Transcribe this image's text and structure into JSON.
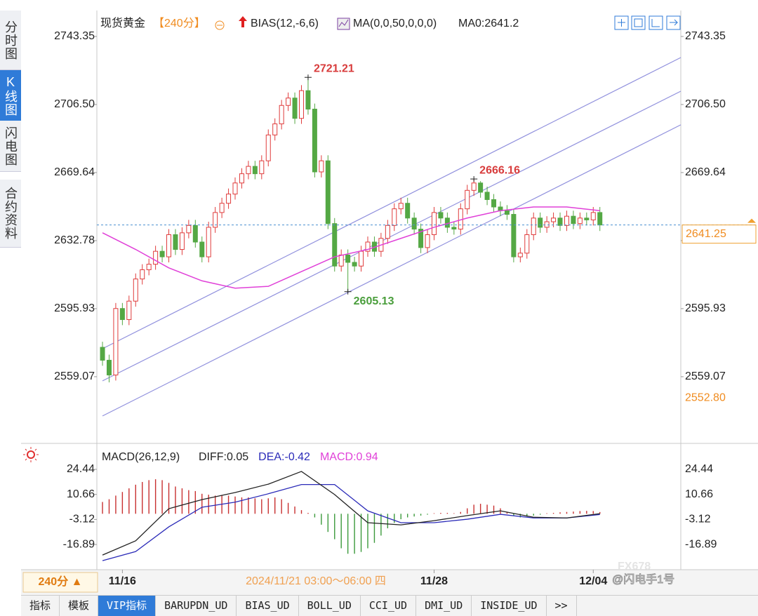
{
  "chart_data": [
    {
      "type": "candlestick",
      "title": "现货黄金",
      "period": "【240分】",
      "indicator": "BIAS(12,-6,6)",
      "ma_setting": "MA(0,0,50,0,0,0)",
      "ma_label": "MA0:2641.2",
      "up_color": "#e03c3c",
      "down_color": "#54a844",
      "open": [
        2575,
        2568,
        2560,
        2596,
        2590,
        2600,
        2612,
        2617,
        2620,
        2627,
        2624,
        2636,
        2628,
        2637,
        2641,
        2632,
        2624,
        2640,
        2648,
        2653,
        2658,
        2664,
        2669,
        2673,
        2669,
        2676,
        2690,
        2696,
        2706,
        2710,
        2699,
        2714,
        2704,
        2670,
        2676,
        2642,
        2619,
        2625,
        2621,
        2619,
        2627,
        2632,
        2627,
        2634,
        2641,
        2650,
        2653,
        2645,
        2639,
        2629,
        2636,
        2648,
        2645,
        2640,
        2639,
        2650,
        2660,
        2664,
        2659,
        2655,
        2651,
        2649,
        2647,
        2624,
        2626,
        2636,
        2645,
        2640,
        2643,
        2645,
        2641,
        2646,
        2642,
        2645,
        2644,
        2648
      ],
      "high": [
        2578,
        2571,
        2599,
        2599,
        2603,
        2615,
        2620,
        2623,
        2630,
        2630,
        2639,
        2639,
        2640,
        2644,
        2644,
        2635,
        2643,
        2651,
        2656,
        2661,
        2667,
        2672,
        2676,
        2676,
        2679,
        2693,
        2699,
        2709,
        2713,
        2713,
        2717,
        2721.21,
        2707,
        2679,
        2679,
        2645,
        2628,
        2628,
        2624,
        2630,
        2635,
        2635,
        2637,
        2644,
        2653,
        2656,
        2656,
        2648,
        2642,
        2639,
        2651,
        2651,
        2648,
        2643,
        2653,
        2663,
        2666.16,
        2665,
        2662,
        2658,
        2654,
        2652,
        2650,
        2629,
        2639,
        2648,
        2648,
        2646,
        2648,
        2648,
        2649,
        2649,
        2648,
        2648,
        2651,
        2651
      ],
      "low": [
        2565,
        2556,
        2557,
        2587,
        2587,
        2597,
        2609,
        2614,
        2617,
        2621,
        2621,
        2625,
        2625,
        2634,
        2629,
        2621,
        2621,
        2637,
        2645,
        2650,
        2655,
        2661,
        2666,
        2666,
        2666,
        2673,
        2687,
        2693,
        2703,
        2696,
        2696,
        2701,
        2667,
        2667,
        2639,
        2616,
        2616,
        2605.13,
        2616,
        2616,
        2624,
        2624,
        2624,
        2631,
        2638,
        2647,
        2642,
        2636,
        2626,
        2626,
        2633,
        2642,
        2637,
        2636,
        2636,
        2647,
        2657,
        2656,
        2652,
        2648,
        2646,
        2644,
        2621,
        2621,
        2623,
        2633,
        2637,
        2637,
        2640,
        2638,
        2638,
        2639,
        2639,
        2641,
        2641,
        2638
      ],
      "close": [
        2568,
        2560,
        2596,
        2590,
        2600,
        2612,
        2617,
        2620,
        2627,
        2624,
        2636,
        2628,
        2637,
        2641,
        2632,
        2624,
        2640,
        2648,
        2653,
        2658,
        2664,
        2669,
        2673,
        2669,
        2676,
        2690,
        2696,
        2706,
        2710,
        2699,
        2714,
        2704,
        2670,
        2676,
        2642,
        2619,
        2625,
        2621,
        2619,
        2627,
        2632,
        2627,
        2634,
        2641,
        2650,
        2653,
        2645,
        2639,
        2629,
        2636,
        2648,
        2645,
        2640,
        2639,
        2650,
        2660,
        2664,
        2659,
        2655,
        2651,
        2649,
        2647,
        2624,
        2626,
        2636,
        2645,
        2640,
        2643,
        2645,
        2641,
        2646,
        2642,
        2645,
        2644,
        2648,
        2641.25
      ],
      "ma": {
        "color": "#e040d8",
        "x": [
          0,
          5,
          10,
          15,
          20,
          25,
          30,
          35,
          40,
          45,
          50,
          55,
          60,
          65,
          70,
          75
        ],
        "values": [
          2637,
          2628,
          2618,
          2611,
          2607,
          2608,
          2616,
          2624,
          2628,
          2634,
          2640,
          2645,
          2649,
          2651,
          2651,
          2649
        ]
      },
      "channels": {
        "color": "#9090dd",
        "lines": [
          {
            "x": [
              0,
              87.2
            ],
            "values": [
              2574.25,
              2731.95
            ]
          },
          {
            "x": [
              0,
              87.2
            ],
            "values": [
              2556.8,
              2713.7
            ]
          },
          {
            "x": [
              0,
              87.2
            ],
            "values": [
              2537.8,
              2695.5
            ]
          }
        ]
      },
      "annotations": [
        {
          "x": 31,
          "value": 2721.21,
          "color": "#d83c3c"
        },
        {
          "x": 37,
          "value": 2605.13,
          "color": "#4a9e3c"
        },
        {
          "x": 56,
          "value": 2666.16,
          "color": "#d83c3c"
        }
      ],
      "price_marker": {
        "value": 2552.8,
        "label": "2552.80"
      },
      "xlim": [
        -0.85,
        87.2
      ],
      "xticks": [
        {
          "value": 3,
          "label": "11/16"
        },
        {
          "value": 50,
          "label": "11/28"
        },
        {
          "value": 74,
          "label": "12/04"
        }
      ],
      "ylim": [
        2525.6,
        2755.5
      ],
      "yticks": [
        2743.35,
        {
          "value": 2706.5,
          "label": "2706.50"
        },
        2669.64,
        2632.78,
        2595.93,
        2559.07
      ]
    },
    {
      "type": "macd",
      "title": "MACD(26,12,9)",
      "legend": [
        {
          "name": "DIFF:0.05",
          "color": "#222222"
        },
        {
          "name": "DEA:-0.42",
          "color": "#2a2ab8"
        },
        {
          "name": "MACD:0.94",
          "color": "#e040d8"
        }
      ],
      "histogram": [
        6.5,
        8,
        10,
        12,
        14,
        16,
        17.5,
        18.5,
        19,
        18.5,
        17,
        15,
        14,
        13,
        12.5,
        11,
        10.5,
        10,
        10,
        10,
        9.5,
        9,
        9,
        8.5,
        8,
        8.5,
        9,
        8,
        6,
        4,
        2,
        0.5,
        -2,
        -6,
        -10,
        -14,
        -19,
        -22,
        -22,
        -21,
        -19,
        -16,
        -12,
        -8,
        -5,
        -3,
        -2,
        -1.5,
        -1,
        -0.5,
        0.3,
        0.5,
        0.5,
        0.3,
        1,
        3,
        5,
        5.5,
        5,
        4.5,
        3,
        1,
        -1,
        -2,
        -1.5,
        -1,
        -0.5,
        0.3,
        0.5,
        0.8,
        1,
        1.2,
        1.5,
        1.6,
        1.5,
        0.94
      ],
      "diff": {
        "x": [
          0,
          5,
          10,
          15,
          20,
          25,
          30,
          35,
          40,
          45,
          50,
          55,
          60,
          65,
          70,
          75
        ],
        "values": [
          -22.7,
          -14.9,
          2.8,
          7.8,
          11.7,
          16.3,
          23.3,
          10.6,
          -4.9,
          -6.1,
          -3.8,
          -1,
          1.6,
          -1.9,
          -2.3,
          0.05
        ]
      },
      "dea": {
        "x": [
          0,
          5,
          10,
          15,
          20,
          25,
          30,
          35,
          40,
          45,
          50,
          55,
          60,
          65,
          70,
          75
        ],
        "values": [
          -25.8,
          -20.8,
          -7.2,
          3.6,
          6.4,
          11,
          16.1,
          16.1,
          1.6,
          -4.9,
          -4.9,
          -3,
          -0.3,
          -2.3,
          -2.3,
          -0.42
        ]
      },
      "ylim": [
        -30,
        33.7
      ],
      "yticks": [
        24.44,
        10.66,
        -3.12,
        -16.89
      ]
    }
  ],
  "sidebar": [
    "分时图",
    "K线图",
    "闪电图",
    "合约资料"
  ],
  "footer": {
    "period_button": "240分 ▲",
    "cursor_time": "2024/11/21 03:00～06:00 四"
  },
  "tabs": [
    "指标",
    "模板",
    "VIP指标",
    "BARUPDN_UD",
    "BIAS_UD",
    "BOLL_UD",
    "CCI_UD",
    "DMI_UD",
    "INSIDE_UD",
    ">>"
  ],
  "watermark": [
    "FX678",
    "@闪电手1号"
  ]
}
